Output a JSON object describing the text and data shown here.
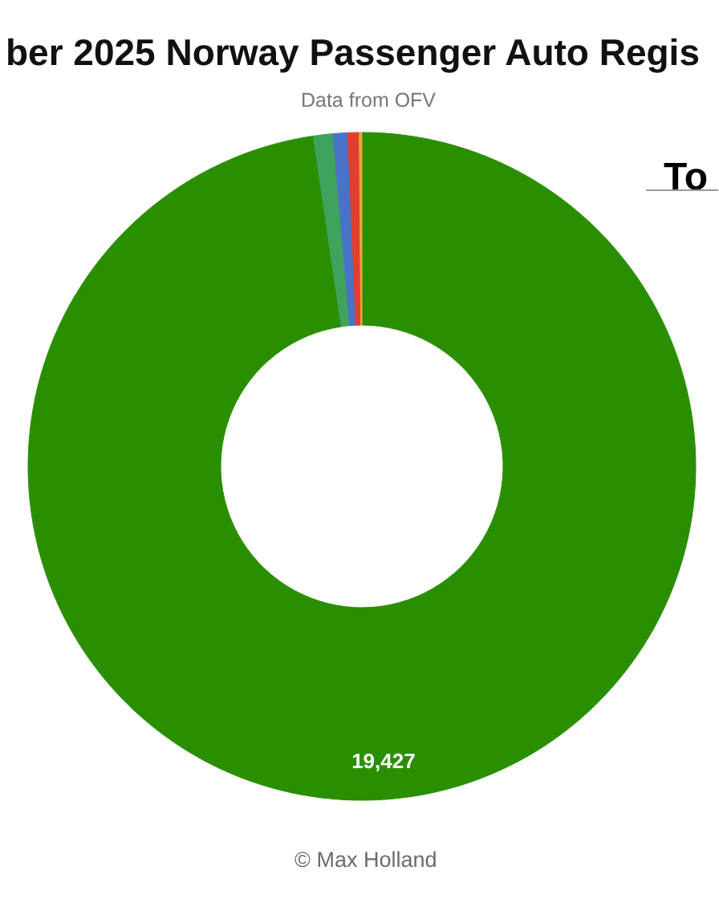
{
  "chart_data": {
    "type": "donut",
    "title": "ber 2025 Norway Passenger Auto Regis",
    "subtitle": "Data from OFV",
    "categories": [
      null,
      null,
      null,
      null,
      null
    ],
    "values": [
      19427,
      188,
      140,
      110,
      25
    ],
    "colors": [
      "#2a8f00",
      "#3fa35e",
      "#4a72c6",
      "#e0402f",
      "#f2a33a"
    ],
    "value_labels": [
      "19,427",
      null,
      null,
      null,
      null
    ],
    "annotations": [
      "To",
      "© Max Holland"
    ]
  }
}
